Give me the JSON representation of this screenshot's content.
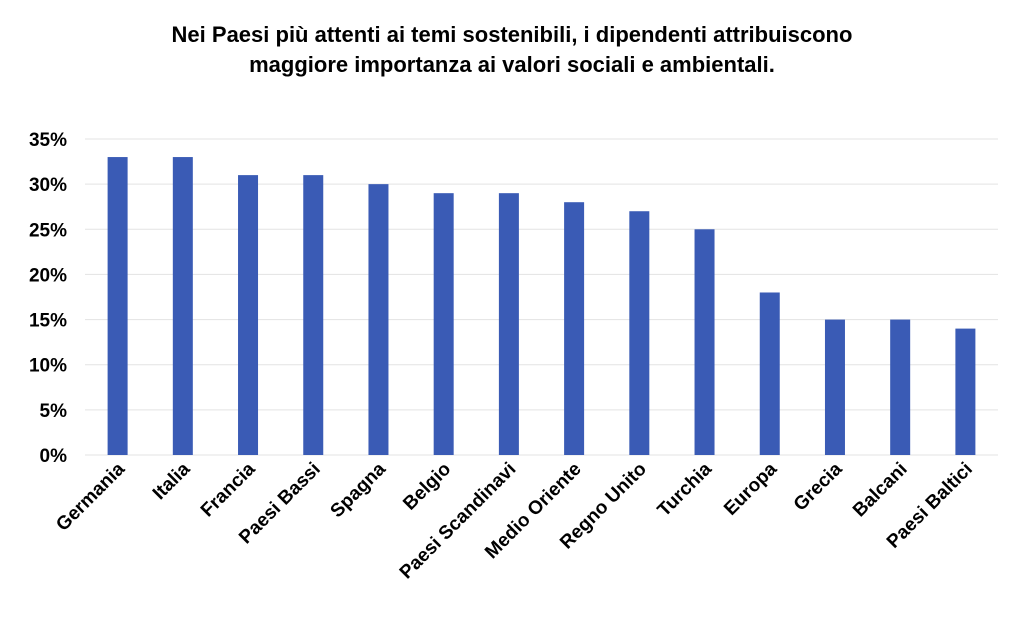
{
  "chart_data": {
    "type": "bar",
    "title_lines": [
      "Nei Paesi più attenti ai temi sostenibili, i dipendenti attribuiscono",
      "maggiore importanza ai valori sociali e ambientali."
    ],
    "categories": [
      "Germania",
      "Italia",
      "Francia",
      "Paesi Bassi",
      "Spagna",
      "Belgio",
      "Paesi Scandinavi",
      "Medio Oriente",
      "Regno Unito",
      "Turchia",
      "Europa",
      "Grecia",
      "Balcani",
      "Paesi Baltici"
    ],
    "values": [
      33,
      33,
      31,
      31,
      30,
      29,
      29,
      28,
      27,
      25,
      18,
      15,
      15,
      14
    ],
    "ylim": [
      0,
      35
    ],
    "y_ticks": [
      "0%",
      "5%",
      "10%",
      "15%",
      "20%",
      "25%",
      "30%",
      "35%"
    ],
    "grid": true,
    "bar_color": "#3a5bb5",
    "grid_color": "#e3e3e3"
  }
}
